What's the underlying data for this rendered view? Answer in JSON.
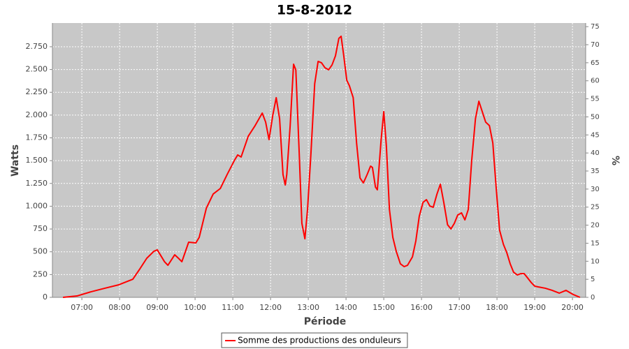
{
  "chart_data": {
    "type": "line",
    "title": "15-8-2012",
    "x_label": "Période",
    "y_label": "Watts",
    "y2_label": "%",
    "x": [
      6.5,
      6.87,
      7.24,
      7.61,
      7.98,
      8.35,
      8.54,
      8.72,
      8.91,
      9.0,
      9.19,
      9.28,
      9.46,
      9.56,
      9.65,
      9.83,
      10.02,
      10.11,
      10.3,
      10.48,
      10.67,
      10.85,
      11.04,
      11.13,
      11.22,
      11.41,
      11.59,
      11.78,
      11.87,
      11.96,
      12.06,
      12.15,
      12.24,
      12.33,
      12.39,
      12.43,
      12.52,
      12.61,
      12.67,
      12.76,
      12.83,
      12.91,
      12.98,
      13.07,
      13.17,
      13.26,
      13.35,
      13.44,
      13.54,
      13.63,
      13.72,
      13.81,
      13.87,
      13.94,
      14.02,
      14.09,
      14.19,
      14.28,
      14.37,
      14.46,
      14.56,
      14.65,
      14.7,
      14.78,
      14.83,
      14.93,
      15.0,
      15.07,
      15.15,
      15.24,
      15.33,
      15.44,
      15.54,
      15.63,
      15.76,
      15.85,
      15.94,
      16.04,
      16.13,
      16.22,
      16.31,
      16.41,
      16.5,
      16.59,
      16.69,
      16.78,
      16.87,
      16.96,
      17.06,
      17.15,
      17.24,
      17.33,
      17.43,
      17.52,
      17.61,
      17.7,
      17.8,
      17.89,
      17.98,
      18.07,
      18.17,
      18.26,
      18.35,
      18.44,
      18.54,
      18.63,
      18.72,
      18.81,
      18.91,
      19.0,
      19.09,
      19.28,
      19.46,
      19.65,
      19.83,
      20.02,
      20.2
    ],
    "series": [
      {
        "name": "Somme des productions des onduleurs",
        "color": "#ff0000",
        "values": [
          0,
          15,
          61,
          100,
          138,
          199,
          314,
          429,
          506,
          521,
          391,
          352,
          467,
          429,
          391,
          605,
          597,
          659,
          980,
          1134,
          1195,
          1348,
          1501,
          1563,
          1540,
          1769,
          1884,
          2022,
          1923,
          1731,
          1999,
          2191,
          1961,
          1348,
          1233,
          1348,
          1884,
          2558,
          2497,
          1578,
          812,
          643,
          965,
          1578,
          2344,
          2589,
          2574,
          2520,
          2497,
          2551,
          2650,
          2842,
          2865,
          2650,
          2382,
          2321,
          2191,
          1693,
          1310,
          1256,
          1348,
          1440,
          1425,
          1210,
          1180,
          1731,
          2038,
          1655,
          965,
          659,
          506,
          368,
          337,
          352,
          444,
          620,
          889,
          1042,
          1072,
          1003,
          988,
          1134,
          1241,
          1042,
          797,
          751,
          812,
          904,
          927,
          850,
          965,
          1501,
          1961,
          2152,
          2038,
          1923,
          1884,
          1693,
          1195,
          735,
          582,
          490,
          368,
          276,
          245,
          260,
          260,
          214,
          161,
          123,
          115,
          100,
          77,
          46,
          77,
          31,
          0
        ]
      }
    ],
    "xlim": [
      6.22,
      20.35
    ],
    "xticks": [
      {
        "value": 7,
        "label": "07:00"
      },
      {
        "value": 8,
        "label": "08:00"
      },
      {
        "value": 9,
        "label": "09:00"
      },
      {
        "value": 10,
        "label": "10:00"
      },
      {
        "value": 11,
        "label": "11:00"
      },
      {
        "value": 12,
        "label": "12:00"
      },
      {
        "value": 13,
        "label": "13:00"
      },
      {
        "value": 14,
        "label": "14:00"
      },
      {
        "value": 15,
        "label": "15:00"
      },
      {
        "value": 16,
        "label": "16:00"
      },
      {
        "value": 17,
        "label": "17:00"
      },
      {
        "value": 18,
        "label": "18:00"
      },
      {
        "value": 19,
        "label": "19:00"
      },
      {
        "value": 20,
        "label": "20:00"
      }
    ],
    "ylim": [
      0,
      3010
    ],
    "yticks": [
      0,
      250,
      500,
      750,
      {
        "value": 1000,
        "label": "1.000"
      },
      {
        "value": 1250,
        "label": "1.250"
      },
      {
        "value": 1500,
        "label": "1.500"
      },
      {
        "value": 1750,
        "label": "1.750"
      },
      {
        "value": 2000,
        "label": "2.000"
      },
      {
        "value": 2250,
        "label": "2.250"
      },
      {
        "value": 2500,
        "label": "2.500"
      },
      {
        "value": 2750,
        "label": "2.750"
      }
    ],
    "y2lim": [
      0,
      76
    ],
    "y2ticks": [
      0,
      5,
      10,
      15,
      20,
      25,
      30,
      35,
      40,
      45,
      50,
      55,
      60,
      65,
      70,
      75
    ],
    "grid": true,
    "legend": "bottom",
    "plot_background": "#c8c8c8"
  }
}
